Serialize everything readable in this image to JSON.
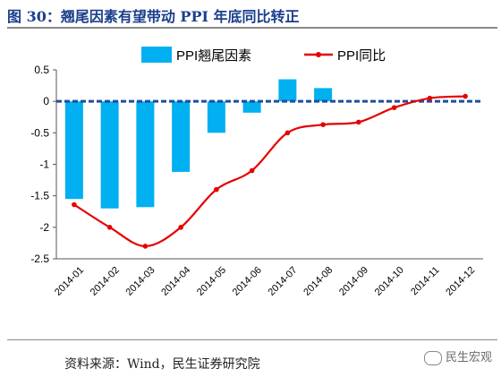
{
  "title": "图 30：翘尾因素有望带动 PPI 年底同比转正",
  "source": "资料来源：Wind，民生证券研究院",
  "watermark": "民生宏观",
  "colors": {
    "bar": "#00b0f0",
    "line": "#e60000",
    "zero_line": "#1f4e9e",
    "title": "#1c3f8c"
  },
  "chart_data": {
    "type": "bar+line",
    "categories": [
      "2014-01",
      "2014-02",
      "2014-03",
      "2014-04",
      "2014-05",
      "2014-06",
      "2014-07",
      "2014-08",
      "2014-09",
      "2014-10",
      "2014-11",
      "2014-12"
    ],
    "series": [
      {
        "name": "PPI翘尾因素",
        "type": "bar",
        "values": [
          -1.55,
          -1.7,
          -1.68,
          -1.12,
          -0.5,
          -0.18,
          0.35,
          0.21,
          0.0,
          0.0,
          0.0,
          0.0
        ]
      },
      {
        "name": "PPI同比",
        "type": "line",
        "values": [
          -1.64,
          -2.0,
          -2.3,
          -2.0,
          -1.4,
          -1.1,
          -0.5,
          -0.37,
          -0.33,
          -0.1,
          0.05,
          0.08
        ]
      }
    ],
    "yticks": [
      0.5,
      0,
      -0.5,
      -1,
      -1.5,
      -2,
      -2.5
    ],
    "ytick_labels": [
      "0.5",
      "0",
      "-0.5",
      "-1",
      "-1.5",
      "-2",
      "-2.5"
    ],
    "ylim": [
      -2.5,
      0.5
    ],
    "legend_position": "top",
    "grid": false
  }
}
